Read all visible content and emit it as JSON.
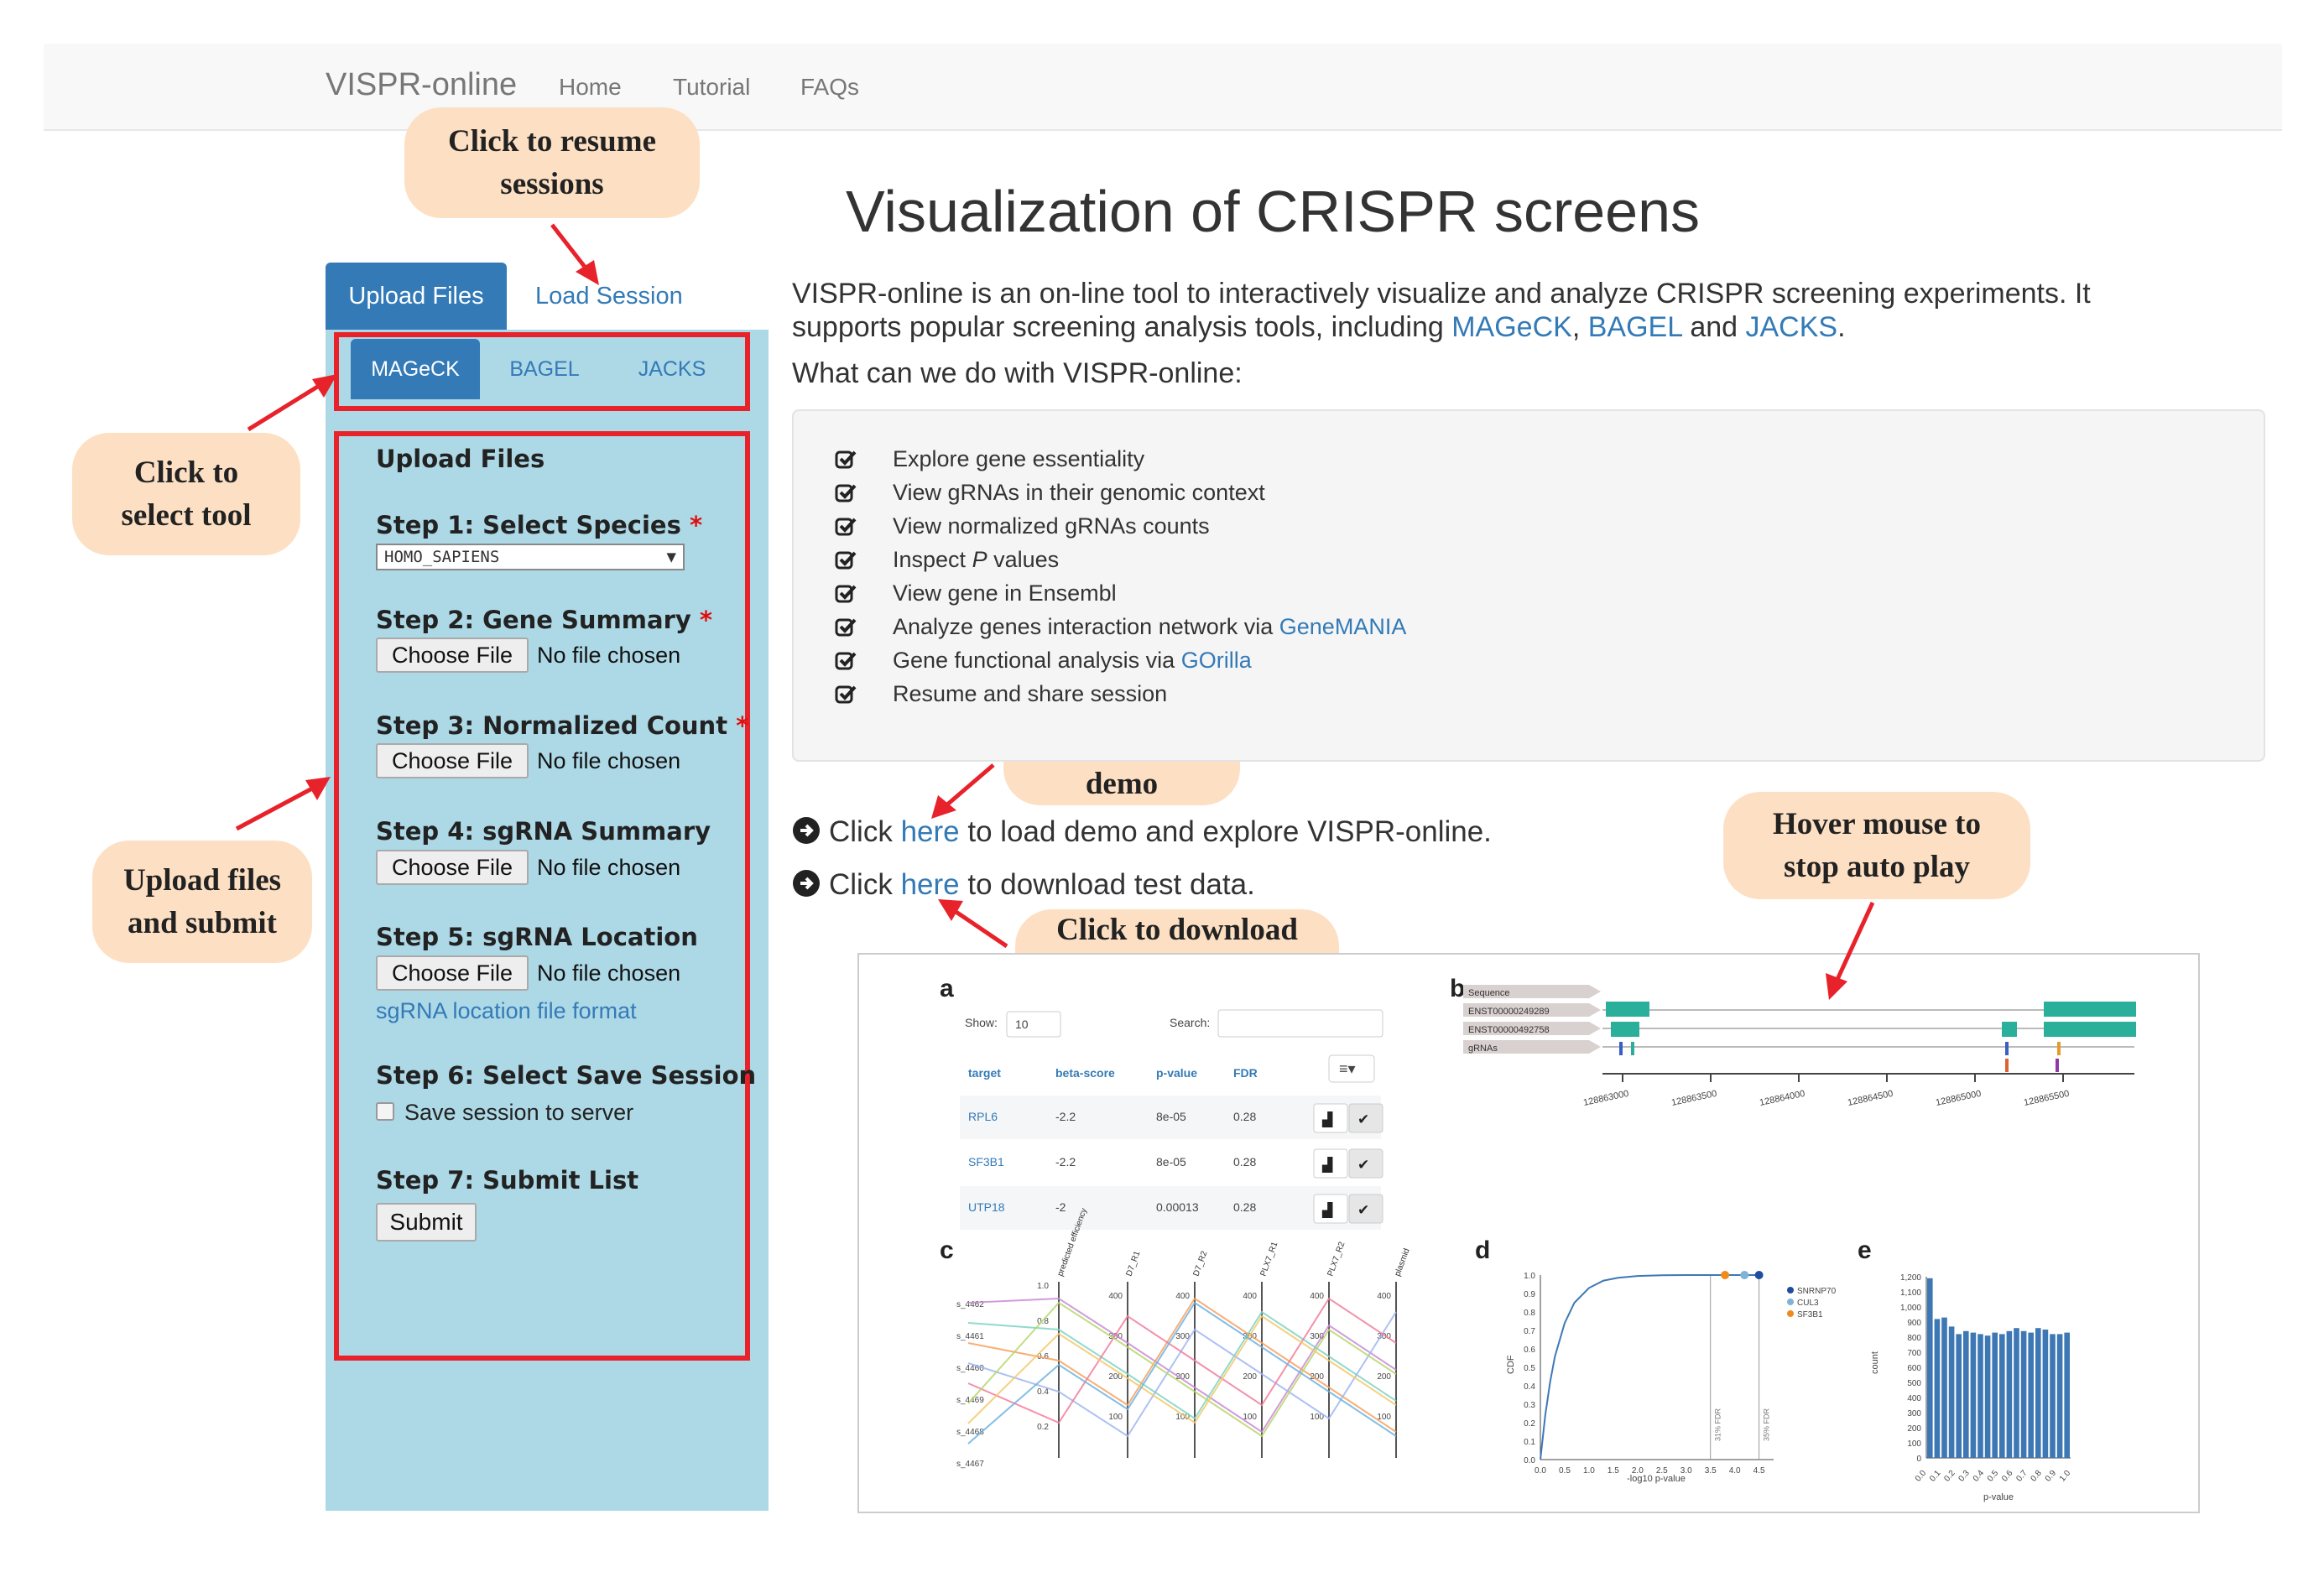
{
  "navbar": {
    "brand": "VISPR-online",
    "links": [
      "Home",
      "Tutorial",
      "FAQs"
    ]
  },
  "callouts": {
    "resume": "Click  to resume\nsessions",
    "select_tool": "Click to\nselect tool",
    "upload_submit": "Upload files\nand submit",
    "load_demo": "Click to load\ndemo",
    "download_test": "Click to download\ntest data",
    "hover_mouse": "Hover mouse  to\nstop auto play"
  },
  "sidebar": {
    "tabs": [
      "Upload Files",
      "Load Session"
    ],
    "tools": [
      "MAGeCK",
      "BAGEL",
      "JACKS"
    ],
    "section_title": "Upload Files",
    "steps": [
      "Step 1: Select Species",
      "Step 2: Gene Summary",
      "Step 3: Normalized Count",
      "Step 4: sgRNA Summary",
      "Step 5: sgRNA Location",
      "Step 6: Select Save Session",
      "Step 7: Submit List"
    ],
    "required_mark": "*",
    "species_value": "HOMO_SAPIENS",
    "species_arrow": "▼",
    "choose_file": "Choose File",
    "no_file": "No file chosen",
    "location_link": "sgRNA location file format",
    "save_label": "Save session to server",
    "submit_label": "Submit"
  },
  "main": {
    "title": "Visualization of CRISPR screens",
    "intro_text": "VISPR-online is an on-line tool to interactively visualize and analyze CRISPR screening experiments. It supports popular screening analysis tools, including ",
    "tool_links": [
      "MAGeCK",
      "BAGEL",
      "JACKS"
    ],
    "sep_comma": ", ",
    "sep_and": " and ",
    "period": ".",
    "what_can": "What can we do with VISPR-online:",
    "features": [
      "Explore gene essentiality",
      "View gRNAs in their genomic context",
      "View normalized gRNAs counts",
      "Inspect ",
      "View gene in Ensembl",
      "Analyze genes interaction network via ",
      "Gene functional analysis via ",
      "Resume and share session"
    ],
    "feature_p": "P",
    "feature_p_suffix": " values",
    "genemania": "GeneMANIA",
    "gorilla": "GOrilla",
    "click": "Click ",
    "here": "here",
    "demo_rest": " to load demo and explore VISPR-online.",
    "download_rest": " to download test data."
  },
  "figure": {
    "panel_labels": [
      "a",
      "b",
      "c",
      "d",
      "e"
    ],
    "table": {
      "show_label": "Show:",
      "show_value": "10",
      "search_label": "Search:",
      "headers": [
        "target",
        "beta-score",
        "p-value",
        "FDR"
      ],
      "rows": [
        [
          "RPL6",
          "-2.2",
          "8e-05",
          "0.28"
        ],
        [
          "SF3B1",
          "-2.2",
          "8e-05",
          "0.28"
        ],
        [
          "UTP18",
          "-2",
          "0.00013",
          "0.28"
        ]
      ]
    },
    "genome": {
      "tracks": [
        "Sequence",
        "ENST00000249289",
        "ENST00000492758",
        "gRNAs"
      ],
      "ticks": [
        "128863000",
        "128863500",
        "128864000",
        "128864500",
        "128865000",
        "128865500"
      ]
    },
    "parallel": {
      "axes": [
        "predicted efficiency",
        "D7_R1",
        "D7_R2",
        "PLX7_R1",
        "PLX7_R2",
        "plasmid"
      ],
      "left_ticks": [
        "s_4462",
        "s_4461",
        "s_4460",
        "s_4469",
        "s_4468",
        "s_4467"
      ],
      "ticks": [
        "1.0",
        "0.8",
        "0.6",
        "0.4",
        "0.2",
        "0",
        "400",
        "300",
        "200",
        "100"
      ]
    },
    "cdf": {
      "ylabel": "CDF",
      "xlabel": "-log10 p-value",
      "yticks": [
        "1.0",
        "0.9",
        "0.8",
        "0.7",
        "0.6",
        "0.5",
        "0.4",
        "0.3",
        "0.2",
        "0.1",
        "0.0"
      ],
      "xticks": [
        "0.0",
        "0.5",
        "1.0",
        "1.5",
        "2.0",
        "2.5",
        "3.0",
        "3.5",
        "4.0",
        "4.5"
      ],
      "legend": [
        "SNRNP70",
        "CUL3",
        "SF3B1"
      ],
      "fdr_labels": [
        "31% FDR",
        "35% FDR"
      ]
    },
    "histogram": {
      "ylabel": "count",
      "xlabel": "p-value",
      "yticks": [
        "1,200",
        "1,100",
        "1,000",
        "900",
        "800",
        "700",
        "600",
        "500",
        "400",
        "300",
        "200",
        "100",
        "0"
      ],
      "xticks": [
        "0.0",
        "0.1",
        "0.2",
        "0.3",
        "0.4",
        "0.5",
        "0.6",
        "0.7",
        "0.8",
        "0.9",
        "1.0"
      ]
    }
  },
  "chart_data": [
    {
      "type": "bar",
      "title": "",
      "xlabel": "p-value",
      "ylabel": "count",
      "ylim": [
        0,
        1200
      ],
      "x": [
        0.0,
        0.05,
        0.1,
        0.15,
        0.2,
        0.25,
        0.3,
        0.35,
        0.4,
        0.45,
        0.5,
        0.55,
        0.6,
        0.65,
        0.7,
        0.75,
        0.8,
        0.85,
        0.9,
        0.95
      ],
      "values": [
        1190,
        920,
        930,
        870,
        820,
        840,
        830,
        820,
        810,
        830,
        820,
        840,
        860,
        840,
        830,
        860,
        850,
        820,
        820,
        830
      ]
    },
    {
      "type": "line",
      "title": "",
      "xlabel": "-log10 p-value",
      "ylabel": "CDF",
      "ylim": [
        0,
        1
      ],
      "xlim": [
        0,
        4.8
      ],
      "x": [
        0,
        0.1,
        0.2,
        0.3,
        0.5,
        0.7,
        1.0,
        1.3,
        1.6,
        2.0,
        2.5,
        3.0,
        3.5,
        4.0,
        4.5
      ],
      "values": [
        0,
        0.24,
        0.42,
        0.56,
        0.74,
        0.85,
        0.93,
        0.97,
        0.985,
        0.995,
        0.999,
        1.0,
        1.0,
        1.0,
        1.0
      ],
      "series_markers": [
        {
          "name": "SNRNP70",
          "x": 4.5,
          "color": "#1f4e9c"
        },
        {
          "name": "CUL3",
          "x": 4.2,
          "color": "#7fb3d8"
        },
        {
          "name": "SF3B1",
          "x": 3.8,
          "color": "#f08a1c"
        }
      ]
    }
  ],
  "colors": {
    "accent": "#337ab7",
    "sidebar_bg": "#add8e6",
    "callout_bg": "#fde0c3",
    "highlight_red": "#e8222b",
    "track_teal": "#2ab09a",
    "bar_blue": "#3d78b5"
  }
}
